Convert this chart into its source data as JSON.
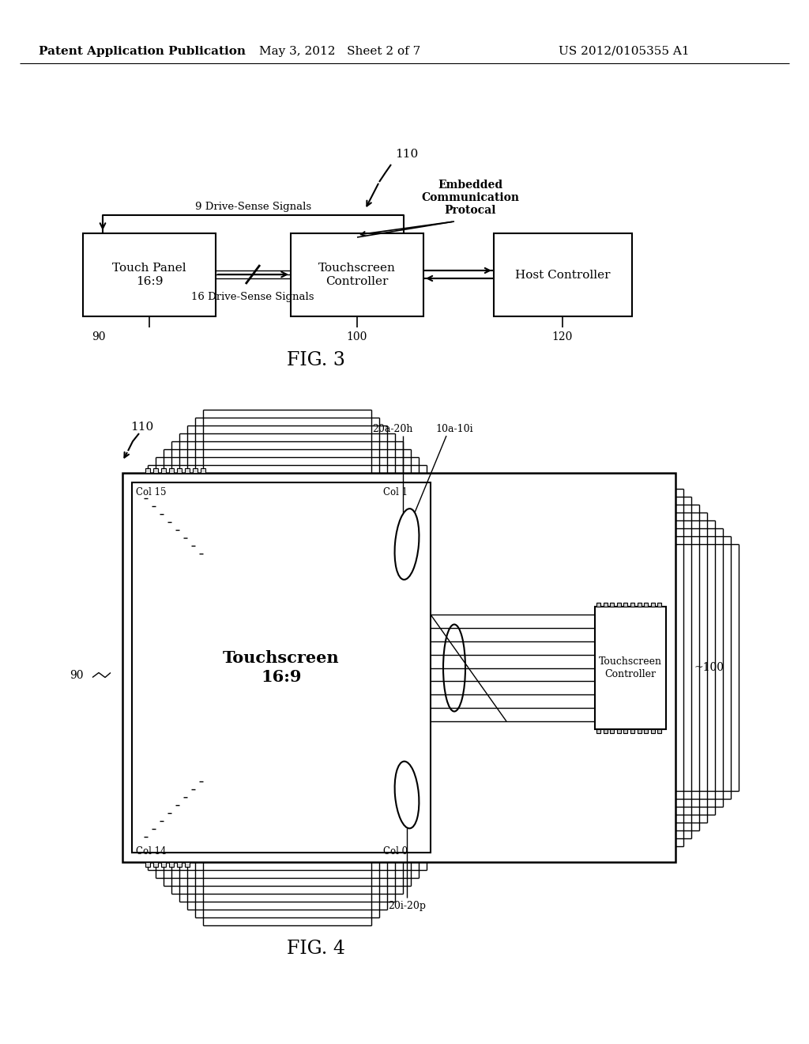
{
  "bg": "#ffffff",
  "hdr_left": "Patent Application Publication",
  "hdr_center": "May 3, 2012   Sheet 2 of 7",
  "hdr_right": "US 2012/0105355 A1",
  "f3_cap": "FIG. 3",
  "f4_cap": "FIG. 4",
  "f3_110": "110",
  "f3_emb": "Embedded\nCommunication\nProtocal",
  "f3_b1": "Touch Panel\n16:9",
  "f3_b2": "Touchscreen\nController",
  "f3_b3": "Host Controller",
  "f3_90": "90",
  "f3_100": "100",
  "f3_120": "120",
  "f3_9s": "9 Drive-Sense Signals",
  "f3_16s": "16 Drive-Sense Signals",
  "f4_110": "110",
  "f4_90": "90",
  "f4_100": "~100",
  "f4_20a20h": "20a-20h",
  "f4_10a10i": "10a-10i",
  "f4_col15": "Col 15",
  "f4_col1": "Col 1",
  "f4_col14": "Col 14",
  "f4_col0": "Col 0",
  "f4_ts": "Touchscreen\n16:9",
  "f4_tsc": "Touchscreen\nController",
  "f4_20i20p": "20i-20p"
}
